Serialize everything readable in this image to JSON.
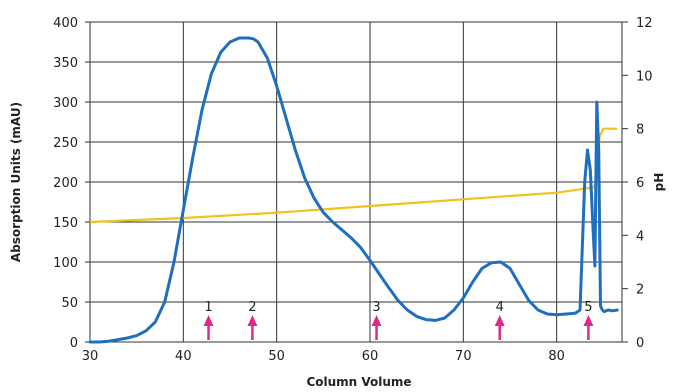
{
  "chart_data": {
    "type": "line",
    "title": "",
    "xlabel": "Column Volume",
    "ylabel": "Absorption Units (mAU)",
    "y2label": "pH",
    "xlim": [
      30,
      87
    ],
    "ylim": [
      0,
      400
    ],
    "y2lim": [
      0,
      12
    ],
    "x_ticks": [
      "30",
      "40",
      "50",
      "60",
      "70",
      "80"
    ],
    "y_ticks": [
      "0",
      "50",
      "100",
      "150",
      "200",
      "250",
      "300",
      "350",
      "400"
    ],
    "y2_ticks": [
      "0",
      "2",
      "4",
      "6",
      "8",
      "10",
      "12"
    ],
    "grid": true,
    "colors": {
      "absorbance": "#1f6fbf",
      "ph": "#f2c21a",
      "markers": "#e0288a",
      "grid": "#333333"
    },
    "series": [
      {
        "axis": "left",
        "x": [
          30,
          31,
          32,
          33,
          34,
          35,
          36,
          37,
          38,
          39,
          40,
          41,
          42,
          43,
          44,
          45,
          46,
          47,
          47.5,
          48,
          49,
          50,
          51,
          52,
          53,
          54,
          55,
          56,
          57,
          58,
          59,
          60,
          61,
          62,
          63,
          64,
          65,
          66,
          67,
          68,
          69,
          70,
          71,
          72,
          73,
          74,
          75,
          76,
          77,
          78,
          79,
          80,
          81,
          82,
          82.5,
          83,
          83.3,
          83.6,
          83.9,
          84.1,
          84.3,
          84.5,
          84.7,
          84.9,
          85.1,
          85.5,
          86,
          86.5
        ],
        "y": [
          0,
          0,
          1,
          3,
          5,
          8,
          14,
          25,
          50,
          100,
          165,
          230,
          290,
          335,
          362,
          375,
          380,
          380,
          379,
          375,
          355,
          320,
          280,
          240,
          205,
          180,
          162,
          150,
          140,
          130,
          118,
          102,
          85,
          68,
          52,
          40,
          32,
          28,
          27,
          30,
          40,
          55,
          75,
          92,
          99,
          100,
          92,
          72,
          52,
          40,
          35,
          34,
          35,
          36,
          40,
          200,
          240,
          215,
          140,
          95,
          300,
          240,
          45,
          40,
          38,
          40,
          39,
          40
        ]
      },
      {
        "axis": "right",
        "x": [
          30,
          40,
          50,
          60,
          70,
          80,
          84,
          84.3,
          84.6,
          85,
          86,
          86.5
        ],
        "y": [
          4.5,
          4.65,
          4.85,
          5.1,
          5.35,
          5.6,
          5.8,
          6.1,
          7.7,
          8.0,
          8.0,
          8.0
        ]
      }
    ],
    "annotations": [
      {
        "label": "1",
        "x": 42.7
      },
      {
        "label": "2",
        "x": 47.4
      },
      {
        "label": "3",
        "x": 60.7
      },
      {
        "label": "4",
        "x": 73.9
      },
      {
        "label": "5",
        "x": 83.4
      }
    ]
  }
}
